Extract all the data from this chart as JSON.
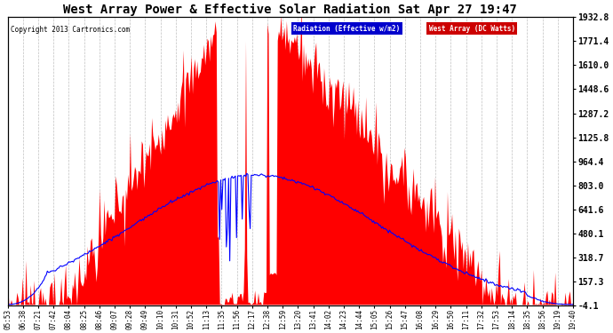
{
  "title": "West Array Power & Effective Solar Radiation Sat Apr 27 19:47",
  "copyright": "Copyright 2013 Cartronics.com",
  "legend_radiation": "Radiation (Effective w/m2)",
  "legend_west": "West Array (DC Watts)",
  "ymin": -4.1,
  "ymax": 1932.8,
  "yticks": [
    -4.1,
    157.3,
    318.7,
    480.1,
    641.6,
    803.0,
    964.4,
    1125.8,
    1287.2,
    1448.6,
    1610.0,
    1771.4,
    1932.8
  ],
  "background_color": "#ffffff",
  "grid_color": "#c0c0c0",
  "red_color": "#ff0000",
  "blue_color": "#0000ff",
  "legend_blue_bg": "#0000cc",
  "legend_red_bg": "#cc0000",
  "x_labels": [
    "05:53",
    "06:38",
    "07:21",
    "07:42",
    "08:04",
    "08:25",
    "08:46",
    "09:07",
    "09:28",
    "09:49",
    "10:10",
    "10:31",
    "10:52",
    "11:13",
    "11:35",
    "11:56",
    "12:17",
    "12:38",
    "12:59",
    "13:20",
    "13:41",
    "14:02",
    "14:23",
    "14:44",
    "15:05",
    "15:26",
    "15:47",
    "16:08",
    "16:29",
    "16:50",
    "17:11",
    "17:32",
    "17:53",
    "18:14",
    "18:35",
    "18:56",
    "19:19",
    "19:40"
  ],
  "num_points": 500,
  "figwidth": 6.9,
  "figheight": 3.75,
  "dpi": 100
}
